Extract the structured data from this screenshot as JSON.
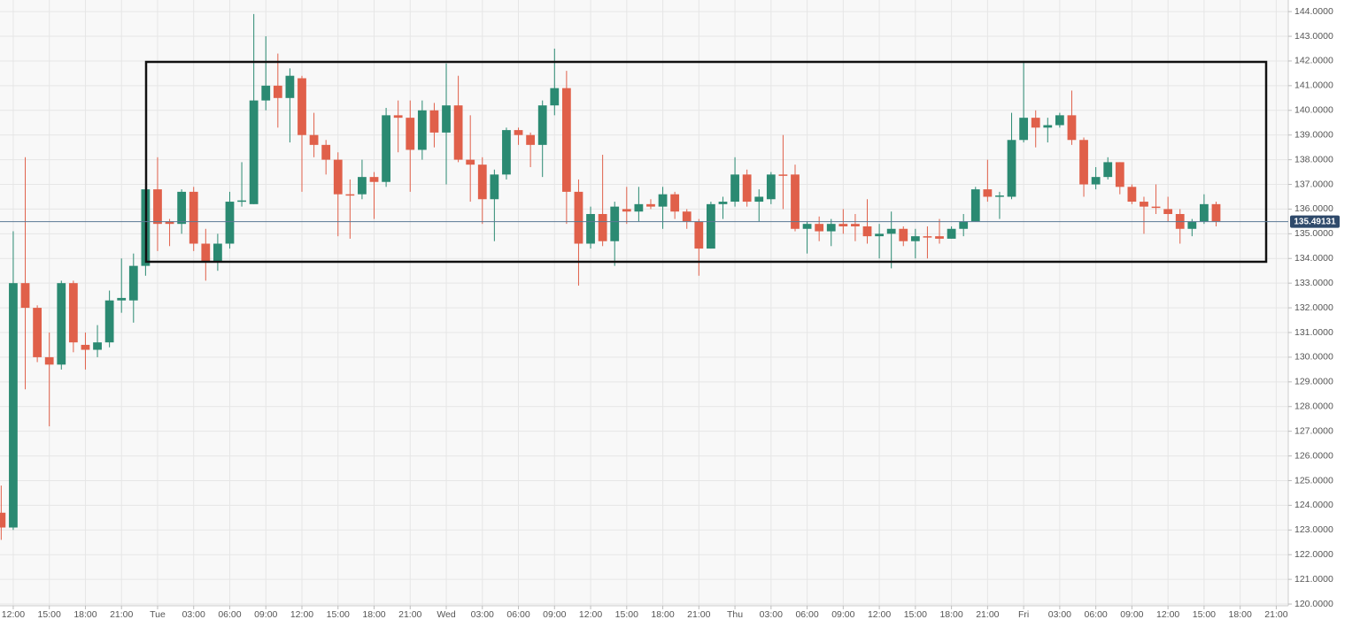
{
  "chart_data": {
    "type": "candlestick",
    "up_color": "#2b8a72",
    "down_color": "#e0604a",
    "grid": true,
    "x": [
      11,
      12,
      13,
      14,
      15,
      16,
      17,
      18,
      19,
      20,
      21,
      22,
      23,
      24,
      25,
      26,
      27,
      28,
      29,
      30,
      31,
      32,
      33,
      34,
      35,
      36,
      37,
      38,
      39,
      40,
      41,
      42,
      43,
      44,
      45,
      46,
      47,
      48,
      49,
      50,
      51,
      52,
      53,
      54,
      55,
      56,
      57,
      58,
      59,
      60,
      61,
      62,
      63,
      64,
      65,
      66,
      67,
      68,
      69,
      70,
      71,
      72,
      73,
      74,
      75,
      76,
      77,
      78,
      79,
      80,
      81,
      82,
      83,
      84,
      85,
      86,
      87,
      88,
      89,
      90,
      91,
      92,
      93,
      94,
      95,
      96,
      97,
      98,
      99,
      100,
      101,
      102,
      103,
      104,
      105,
      106,
      107,
      108,
      109,
      110,
      111,
      112
    ],
    "open": [
      123.7,
      123.1,
      133.0,
      132.0,
      130.0,
      129.7,
      133.0,
      130.5,
      130.3,
      130.6,
      132.3,
      132.3,
      133.7,
      136.8,
      135.5,
      135.4,
      136.7,
      134.6,
      133.9,
      134.6,
      136.3,
      136.2,
      140.4,
      141.0,
      140.5,
      141.3,
      139.0,
      138.6,
      138.0,
      136.6,
      136.6,
      137.3,
      137.1,
      139.8,
      139.7,
      138.4,
      140.0,
      139.1,
      140.2,
      138.0,
      137.8,
      136.4,
      137.4,
      139.2,
      139.0,
      138.6,
      140.2,
      140.9,
      136.7,
      134.6,
      135.8,
      134.7,
      136.0,
      135.9,
      136.2,
      136.1,
      136.6,
      135.9,
      135.5,
      134.4,
      136.2,
      136.3,
      137.4,
      136.3,
      136.4,
      137.4,
      137.4,
      135.2,
      135.4,
      135.1,
      135.4,
      135.4,
      135.3,
      134.9,
      135.0,
      135.2,
      134.7,
      134.9,
      134.9,
      134.8,
      135.2,
      135.5,
      136.8,
      136.5,
      136.5,
      138.8,
      139.7,
      139.3,
      139.4,
      139.8,
      138.8,
      137.0,
      137.3,
      137.9,
      136.9,
      136.3,
      136.1,
      136.0,
      135.8,
      135.2,
      135.5,
      136.2
    ],
    "high": [
      124.8,
      135.1,
      138.1,
      132.1,
      131.0,
      133.1,
      133.1,
      131.0,
      131.3,
      132.7,
      134.0,
      134.2,
      136.9,
      138.1,
      135.6,
      136.8,
      136.9,
      135.2,
      135.0,
      136.7,
      137.9,
      143.9,
      143.0,
      142.3,
      141.7,
      141.4,
      139.9,
      138.8,
      138.3,
      137.2,
      138.0,
      137.5,
      140.1,
      140.4,
      140.4,
      140.4,
      140.3,
      141.9,
      141.4,
      139.8,
      138.1,
      137.6,
      139.3,
      139.3,
      139.1,
      140.4,
      142.5,
      141.6,
      137.2,
      136.1,
      138.2,
      136.3,
      136.9,
      136.9,
      136.4,
      136.9,
      136.7,
      136.0,
      135.6,
      136.3,
      136.5,
      138.1,
      137.6,
      136.8,
      137.5,
      139.0,
      137.8,
      135.5,
      135.7,
      135.6,
      136.0,
      135.8,
      136.4,
      135.4,
      135.9,
      135.3,
      135.2,
      135.3,
      135.6,
      135.3,
      135.8,
      136.9,
      138.0,
      136.7,
      139.9,
      142.0,
      140.0,
      139.7,
      139.9,
      140.8,
      138.9,
      137.7,
      138.1,
      137.9,
      137.0,
      136.5,
      137.0,
      136.5,
      136.0,
      135.6,
      136.6,
      136.3
    ],
    "low": [
      122.6,
      123.0,
      128.7,
      129.8,
      127.2,
      129.5,
      130.2,
      129.5,
      130.0,
      130.4,
      131.8,
      131.4,
      133.3,
      134.3,
      134.5,
      135.0,
      134.3,
      133.1,
      133.5,
      134.4,
      136.1,
      136.2,
      140.0,
      139.3,
      138.7,
      136.7,
      138.1,
      137.4,
      134.9,
      134.8,
      136.4,
      135.6,
      136.9,
      138.3,
      136.7,
      138.0,
      138.5,
      137.0,
      137.9,
      136.3,
      135.4,
      134.7,
      137.2,
      138.6,
      137.7,
      137.3,
      139.8,
      135.4,
      132.9,
      134.4,
      134.5,
      133.7,
      135.4,
      135.5,
      136.0,
      135.2,
      135.6,
      135.2,
      133.3,
      134.4,
      135.6,
      136.1,
      136.1,
      135.5,
      136.2,
      136.0,
      135.1,
      134.2,
      134.7,
      134.5,
      135.0,
      134.7,
      134.6,
      134.0,
      133.6,
      134.5,
      134.0,
      134.0,
      134.6,
      134.8,
      134.9,
      135.5,
      136.3,
      135.6,
      136.4,
      138.7,
      138.5,
      138.7,
      139.3,
      138.6,
      136.5,
      136.8,
      137.2,
      136.6,
      136.2,
      135.0,
      135.8,
      135.5,
      134.6,
      134.9,
      135.4,
      135.3
    ],
    "close": [
      123.1,
      133.0,
      132.0,
      130.0,
      129.7,
      133.0,
      130.6,
      130.3,
      130.6,
      132.3,
      132.4,
      133.7,
      136.8,
      135.4,
      135.4,
      136.7,
      134.6,
      133.9,
      134.6,
      136.3,
      136.35,
      140.4,
      141.0,
      140.5,
      141.4,
      139.0,
      138.6,
      138.0,
      136.6,
      136.55,
      137.3,
      137.1,
      139.8,
      139.7,
      138.4,
      140.0,
      139.1,
      140.2,
      138.0,
      137.8,
      136.4,
      137.4,
      139.2,
      139.0,
      138.6,
      140.2,
      140.9,
      136.7,
      134.6,
      135.8,
      134.7,
      136.1,
      135.9,
      136.2,
      136.1,
      136.6,
      135.9,
      135.5,
      134.4,
      136.2,
      136.3,
      137.4,
      136.3,
      136.5,
      137.4,
      137.35,
      135.2,
      135.4,
      135.1,
      135.4,
      135.3,
      135.3,
      134.9,
      135.0,
      135.2,
      134.7,
      134.9,
      134.85,
      134.8,
      135.2,
      135.5,
      136.8,
      136.5,
      136.55,
      138.8,
      139.7,
      139.3,
      139.4,
      139.8,
      138.8,
      137.0,
      137.3,
      137.9,
      136.9,
      136.3,
      136.1,
      136.05,
      135.8,
      135.2,
      135.5,
      136.2,
      135.5
    ],
    "last_price": 135.49131,
    "xlim": [
      10.9,
      118.0
    ],
    "xticks": [
      {
        "value": 12,
        "label": "12:00"
      },
      {
        "value": 15,
        "label": "15:00"
      },
      {
        "value": 18,
        "label": "18:00"
      },
      {
        "value": 21,
        "label": "21:00"
      },
      {
        "value": 24,
        "label": "Tue"
      },
      {
        "value": 27,
        "label": "03:00"
      },
      {
        "value": 30,
        "label": "06:00"
      },
      {
        "value": 33,
        "label": "09:00"
      },
      {
        "value": 36,
        "label": "12:00"
      },
      {
        "value": 39,
        "label": "15:00"
      },
      {
        "value": 42,
        "label": "18:00"
      },
      {
        "value": 45,
        "label": "21:00"
      },
      {
        "value": 48,
        "label": "Wed"
      },
      {
        "value": 51,
        "label": "03:00"
      },
      {
        "value": 54,
        "label": "06:00"
      },
      {
        "value": 57,
        "label": "09:00"
      },
      {
        "value": 60,
        "label": "12:00"
      },
      {
        "value": 63,
        "label": "15:00"
      },
      {
        "value": 66,
        "label": "18:00"
      },
      {
        "value": 69,
        "label": "21:00"
      },
      {
        "value": 72,
        "label": "Thu"
      },
      {
        "value": 75,
        "label": "03:00"
      },
      {
        "value": 78,
        "label": "06:00"
      },
      {
        "value": 81,
        "label": "09:00"
      },
      {
        "value": 84,
        "label": "12:00"
      },
      {
        "value": 87,
        "label": "15:00"
      },
      {
        "value": 90,
        "label": "18:00"
      },
      {
        "value": 93,
        "label": "21:00"
      },
      {
        "value": 96,
        "label": "Fri"
      },
      {
        "value": 99,
        "label": "03:00"
      },
      {
        "value": 102,
        "label": "06:00"
      },
      {
        "value": 105,
        "label": "09:00"
      },
      {
        "value": 108,
        "label": "12:00"
      },
      {
        "value": 111,
        "label": "15:00"
      },
      {
        "value": 114,
        "label": "18:00"
      },
      {
        "value": 117,
        "label": "21:00"
      }
    ],
    "ylim": [
      119.93,
      144.47
    ],
    "yticks": [
      {
        "value": 120,
        "label": "120.0000"
      },
      {
        "value": 121,
        "label": "121.0000"
      },
      {
        "value": 122,
        "label": "122.0000"
      },
      {
        "value": 123,
        "label": "123.0000"
      },
      {
        "value": 124,
        "label": "124.0000"
      },
      {
        "value": 125,
        "label": "125.0000"
      },
      {
        "value": 126,
        "label": "126.0000"
      },
      {
        "value": 127,
        "label": "127.0000"
      },
      {
        "value": 128,
        "label": "128.0000"
      },
      {
        "value": 129,
        "label": "129.0000"
      },
      {
        "value": 130,
        "label": "130.0000"
      },
      {
        "value": 131,
        "label": "131.0000"
      },
      {
        "value": 132,
        "label": "132.0000"
      },
      {
        "value": 133,
        "label": "133.0000"
      },
      {
        "value": 134,
        "label": "134.0000"
      },
      {
        "value": 135,
        "label": "135.0000"
      },
      {
        "value": 136,
        "label": "136.0000"
      },
      {
        "value": 137,
        "label": "137.0000"
      },
      {
        "value": 138,
        "label": "138.0000"
      },
      {
        "value": 139,
        "label": "139.0000"
      },
      {
        "value": 140,
        "label": "140.0000"
      },
      {
        "value": 141,
        "label": "141.0000"
      },
      {
        "value": 142,
        "label": "142.0000"
      },
      {
        "value": 143,
        "label": "143.0000"
      },
      {
        "value": 144,
        "label": "144.0000"
      }
    ]
  }
}
